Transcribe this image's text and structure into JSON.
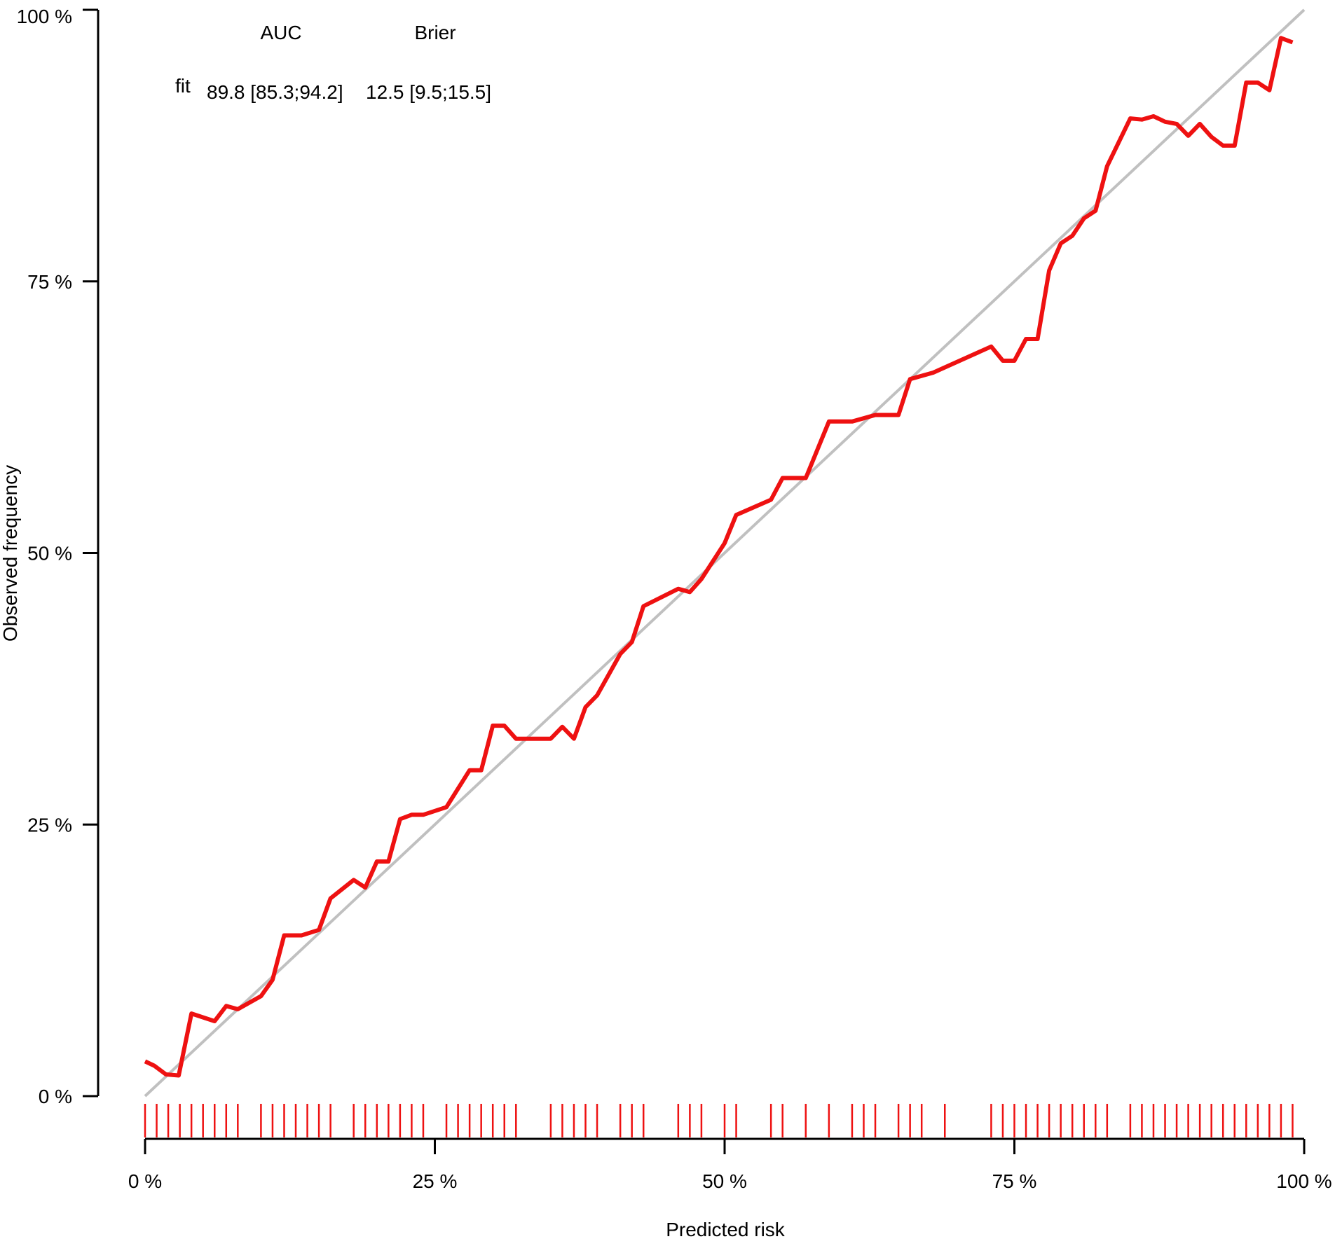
{
  "chart_data": {
    "type": "line",
    "xlabel": "Predicted risk",
    "ylabel": "Observed frequency",
    "xlim": [
      0,
      100
    ],
    "ylim": [
      0,
      100
    ],
    "x_ticks": [
      "0 %",
      "25 %",
      "50 %",
      "75 %",
      "100 %"
    ],
    "y_ticks": [
      "0 %",
      "25 %",
      "50 %",
      "75 %",
      "100 %"
    ],
    "x_tick_values": [
      0,
      25,
      50,
      75,
      100
    ],
    "y_tick_values": [
      0,
      25,
      50,
      75,
      100
    ],
    "reference_line": {
      "x": [
        0,
        100
      ],
      "y": [
        0,
        100
      ],
      "color": "#c0c0c0"
    },
    "legend": {
      "headers": [
        "AUC",
        "Brier"
      ],
      "row_label": "fit",
      "auc": "89.8 [85.3;94.2]",
      "brier": "12.5 [9.5;15.5]"
    },
    "series": [
      {
        "name": "fit",
        "color": "#ee1111",
        "x": [
          0,
          0.8,
          1.8,
          2.9,
          4.0,
          6.0,
          7.0,
          8.0,
          10.0,
          11.0,
          12.0,
          13.5,
          15.0,
          16.0,
          18.0,
          19.0,
          20.0,
          21.0,
          22.0,
          23.0,
          24.0,
          26.0,
          28.0,
          29.0,
          30.0,
          31.0,
          32.0,
          35.0,
          36.0,
          37.0,
          38.0,
          39.0,
          41.0,
          42.0,
          43.0,
          46.0,
          47.0,
          48.0,
          50.0,
          51.0,
          54.0,
          55.0,
          57.0,
          59.0,
          61.0,
          62.0,
          63.0,
          65.0,
          66.0,
          68.0,
          73.0,
          74.0,
          75.0,
          76.0,
          77.0,
          78.0,
          79.0,
          80.0,
          81.0,
          82.0,
          83.0,
          85.0,
          86.0,
          87.0,
          88.0,
          89.0,
          90.0,
          91.0,
          92.0,
          93.0,
          94.0,
          95.0,
          96.0,
          97.0,
          98.0,
          99.0
        ],
        "y": [
          3.2,
          2.8,
          2.0,
          1.9,
          7.6,
          6.9,
          8.3,
          8.0,
          9.2,
          10.7,
          14.8,
          14.8,
          15.3,
          18.2,
          19.9,
          19.2,
          21.6,
          21.6,
          25.5,
          25.9,
          25.9,
          26.6,
          30.0,
          30.0,
          34.1,
          34.1,
          32.9,
          32.9,
          34.0,
          32.9,
          35.8,
          36.9,
          40.7,
          41.8,
          45.1,
          46.7,
          46.4,
          47.6,
          50.9,
          53.5,
          54.9,
          56.9,
          56.9,
          62.1,
          62.1,
          62.4,
          62.7,
          62.7,
          66.0,
          66.6,
          69.0,
          67.7,
          67.7,
          69.7,
          69.7,
          76.0,
          78.5,
          79.2,
          80.8,
          81.5,
          85.6,
          90.0,
          89.9,
          90.2,
          89.7,
          89.5,
          88.4,
          89.5,
          88.3,
          87.5,
          87.5,
          93.3,
          93.3,
          92.6,
          97.4,
          97.0
        ]
      }
    ],
    "rug_x": [
      0,
      1,
      2,
      3,
      4,
      5,
      6,
      7,
      8,
      10,
      11,
      12,
      13,
      14,
      15,
      16,
      18,
      19,
      20,
      21,
      22,
      23,
      24,
      26,
      27,
      28,
      29,
      30,
      31,
      32,
      35,
      36,
      37,
      38,
      39,
      41,
      42,
      43,
      46,
      47,
      48,
      50,
      51,
      54,
      55,
      57,
      59,
      61,
      62,
      63,
      65,
      66,
      67,
      69,
      73,
      74,
      75,
      76,
      77,
      78,
      79,
      80,
      81,
      82,
      83,
      85,
      86,
      87,
      88,
      89,
      90,
      91,
      92,
      93,
      94,
      95,
      96,
      97,
      98,
      99
    ],
    "rug_color": "#ee1111"
  }
}
